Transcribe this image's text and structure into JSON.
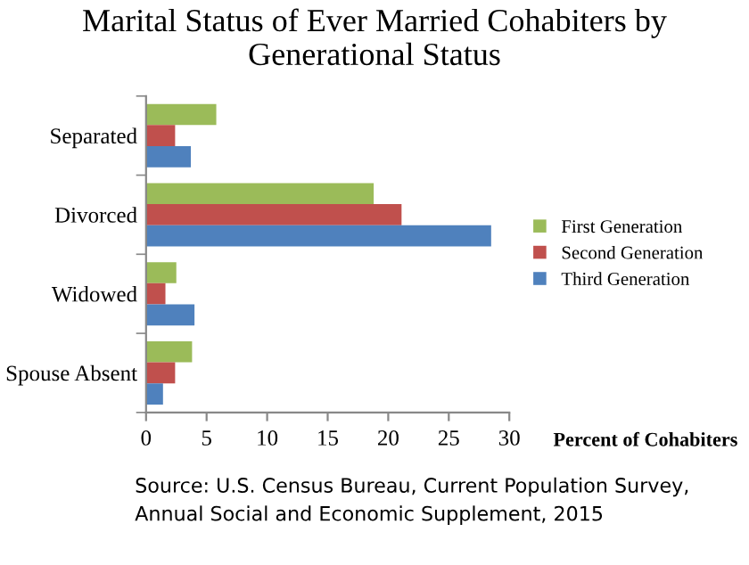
{
  "chart_data": {
    "type": "bar",
    "orientation": "horizontal",
    "title": "Marital Status of Ever Married Cohabiters by Generational Status",
    "xlabel": "Percent of Cohabiters",
    "categories": [
      "Separated",
      "Divorced",
      "Widowed",
      "Spouse Absent"
    ],
    "series": [
      {
        "name": "First Generation",
        "color": "#9bbb59",
        "values": [
          5.8,
          18.8,
          2.5,
          3.8
        ]
      },
      {
        "name": "Second Generation",
        "color": "#c0504d",
        "values": [
          2.4,
          21.1,
          1.6,
          2.4
        ]
      },
      {
        "name": "Third Generation",
        "color": "#4f81bd",
        "values": [
          3.7,
          28.5,
          4.0,
          1.4
        ]
      }
    ],
    "xlim": [
      0,
      30
    ],
    "xticks": [
      0,
      5,
      10,
      15,
      20,
      25,
      30
    ],
    "grid": false,
    "legend": "right",
    "annotations": [
      "Source: U.S. Census Bureau, Current Population Survey, Annual Social and Economic Supplement, 2015"
    ]
  }
}
